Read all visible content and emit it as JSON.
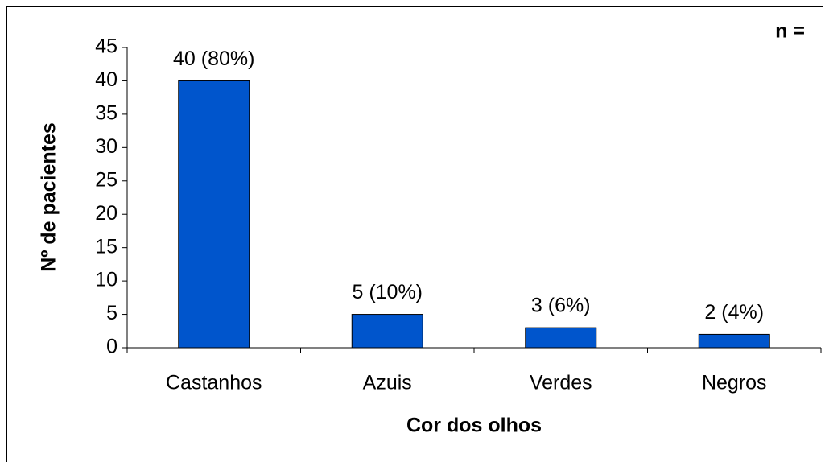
{
  "chart_data": {
    "type": "bar",
    "annotation": "n =",
    "x_label": "Cor dos olhos",
    "y_label": "Nº de pacientes",
    "categories": [
      "Castanhos",
      "Azuis",
      "Verdes",
      "Negros"
    ],
    "values": [
      40,
      5,
      3,
      2
    ],
    "value_labels": [
      "40 (80%)",
      "5 (10%)",
      "3 (6%)",
      "2 (4%)"
    ],
    "color": "#0055cc",
    "ylim": [
      0,
      45
    ],
    "yticks": [
      0,
      5,
      10,
      15,
      20,
      25,
      30,
      35,
      40,
      45
    ],
    "grid": false
  }
}
